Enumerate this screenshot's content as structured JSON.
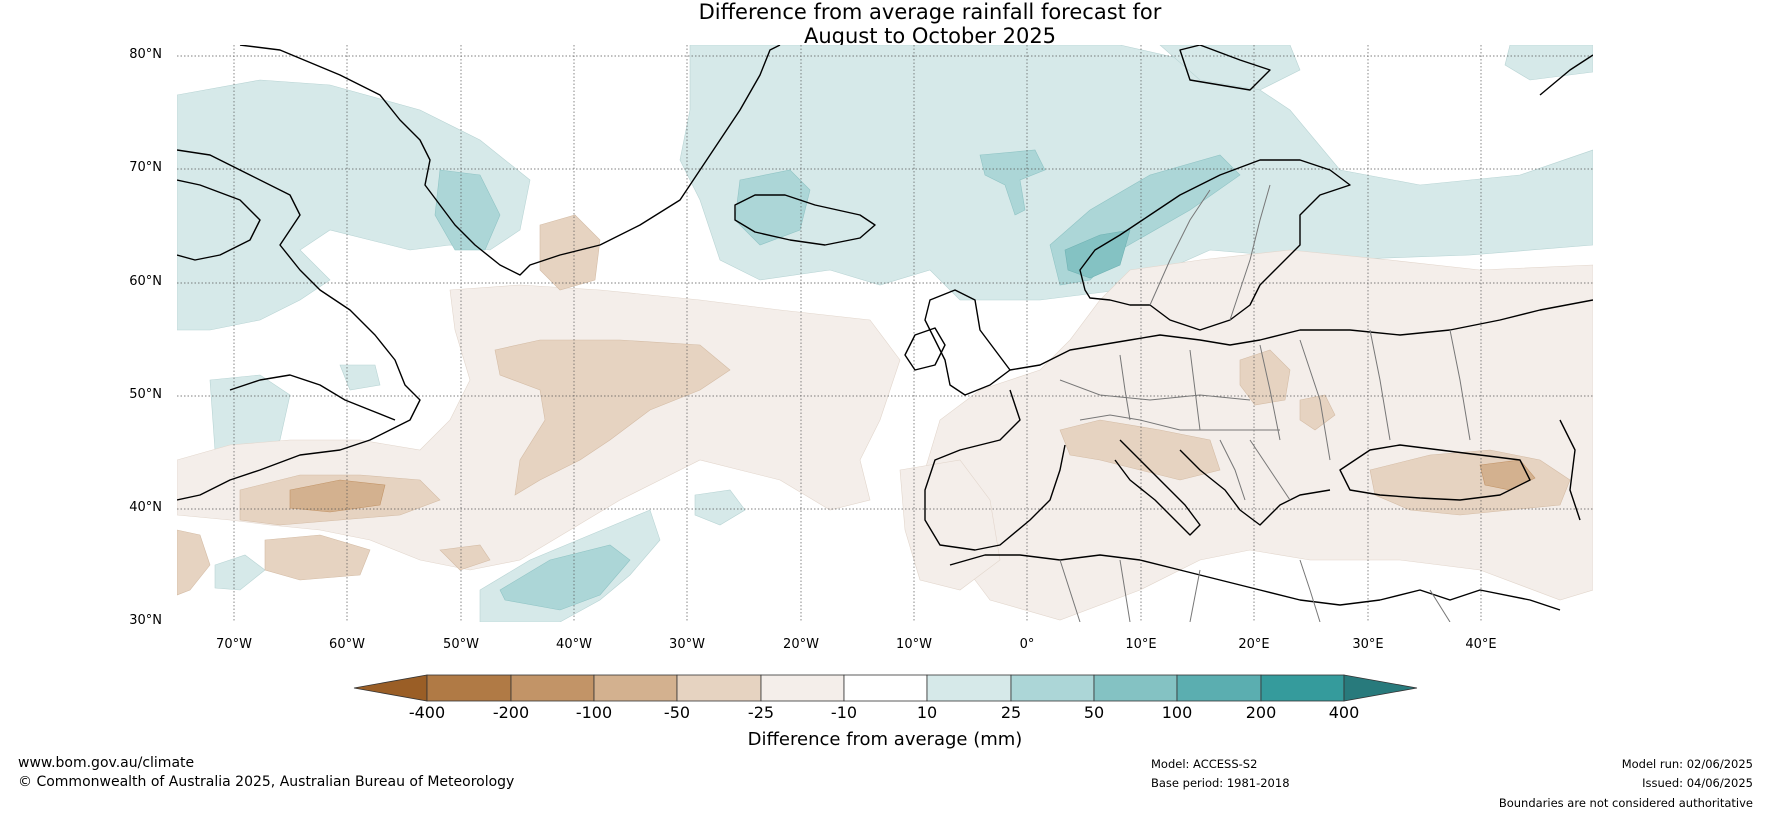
{
  "title": {
    "line1": "Difference from average rainfall forecast for",
    "line2": "August to October 2025"
  },
  "axes": {
    "lat_ticks": [
      "80°N",
      "70°N",
      "60°N",
      "50°N",
      "40°N",
      "30°N"
    ],
    "lon_ticks": [
      "70°W",
      "60°W",
      "50°W",
      "40°W",
      "30°W",
      "20°W",
      "10°W",
      "0°",
      "10°E",
      "20°E",
      "30°E",
      "40°E"
    ]
  },
  "colorbar": {
    "title": "Difference from average (mm)",
    "tick_labels": [
      "-400",
      "-200",
      "-100",
      "-50",
      "-25",
      "-10",
      "10",
      "25",
      "50",
      "100",
      "200",
      "400"
    ],
    "colors": [
      "#9a5e26",
      "#b07a45",
      "#c29467",
      "#d3b18f",
      "#e6d3c1",
      "#f4eeea",
      "#ffffff",
      "#d6e9e9",
      "#acd6d7",
      "#84c2c3",
      "#5baeb0",
      "#359b9c",
      "#287a7c"
    ]
  },
  "footer": {
    "website": "www.bom.gov.au/climate",
    "copyright": "© Commonwealth of Australia 2025, Australian Bureau of Meteorology",
    "model": "Model: ACCESS-S2",
    "base_period": "Base period: 1981-2018",
    "model_run": "Model run: 02/06/2025",
    "issued": "Issued: 04/06/2025",
    "disclaimer": "Boundaries are not considered authoritative"
  },
  "map_extent": {
    "lon_min": -75,
    "lon_max": 50,
    "lat_min": 30,
    "lat_max": 81
  }
}
